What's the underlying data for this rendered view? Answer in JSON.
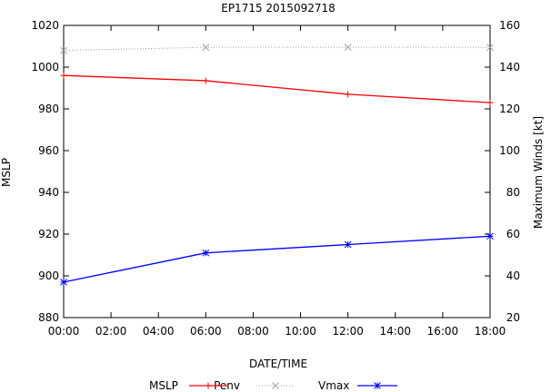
{
  "chart_data": {
    "type": "line",
    "title": "EP1715 2015092718",
    "xlabel": "DATE/TIME",
    "ylabel": "MSLP",
    "y2label": "Maximum Winds [kt]",
    "xlim": [
      0,
      18
    ],
    "ylim": [
      880,
      1020
    ],
    "y2lim": [
      20,
      160
    ],
    "xticks": [
      0,
      2,
      4,
      6,
      8,
      10,
      12,
      14,
      16,
      18
    ],
    "xtick_labels": [
      "00:00",
      "02:00",
      "04:00",
      "06:00",
      "08:00",
      "10:00",
      "12:00",
      "14:00",
      "16:00",
      "18:00"
    ],
    "yticks": [
      880,
      900,
      920,
      940,
      960,
      980,
      1000,
      1020
    ],
    "ytick_labels": [
      "880",
      "900",
      "920",
      "940",
      "960",
      "980",
      "1000",
      "1020"
    ],
    "y2ticks": [
      20,
      40,
      60,
      80,
      100,
      120,
      140,
      160
    ],
    "y2tick_labels": [
      "20",
      "40",
      "60",
      "80",
      "100",
      "120",
      "140",
      "160"
    ],
    "legend_title": "MSLP",
    "legend_position": "bottom",
    "series": [
      {
        "name": "Penv",
        "axis": "y",
        "color": "#ff0000",
        "style": "solid",
        "marker": "plus",
        "x": [
          0,
          6,
          12,
          18
        ],
        "values": [
          996,
          993.5,
          987,
          983
        ]
      },
      {
        "name": "Vmax",
        "axis": "y2",
        "color": "#a0a0a0",
        "style": "dotted",
        "marker": "cross",
        "x": [
          0,
          6,
          12,
          18
        ],
        "values": [
          148,
          149.5,
          149.5,
          149.5
        ]
      },
      {
        "name": "",
        "axis": "y",
        "color": "#0000ff",
        "style": "solid",
        "marker": "star",
        "x": [
          0,
          6,
          12,
          18
        ],
        "values": [
          897,
          911,
          915,
          919
        ]
      }
    ]
  }
}
